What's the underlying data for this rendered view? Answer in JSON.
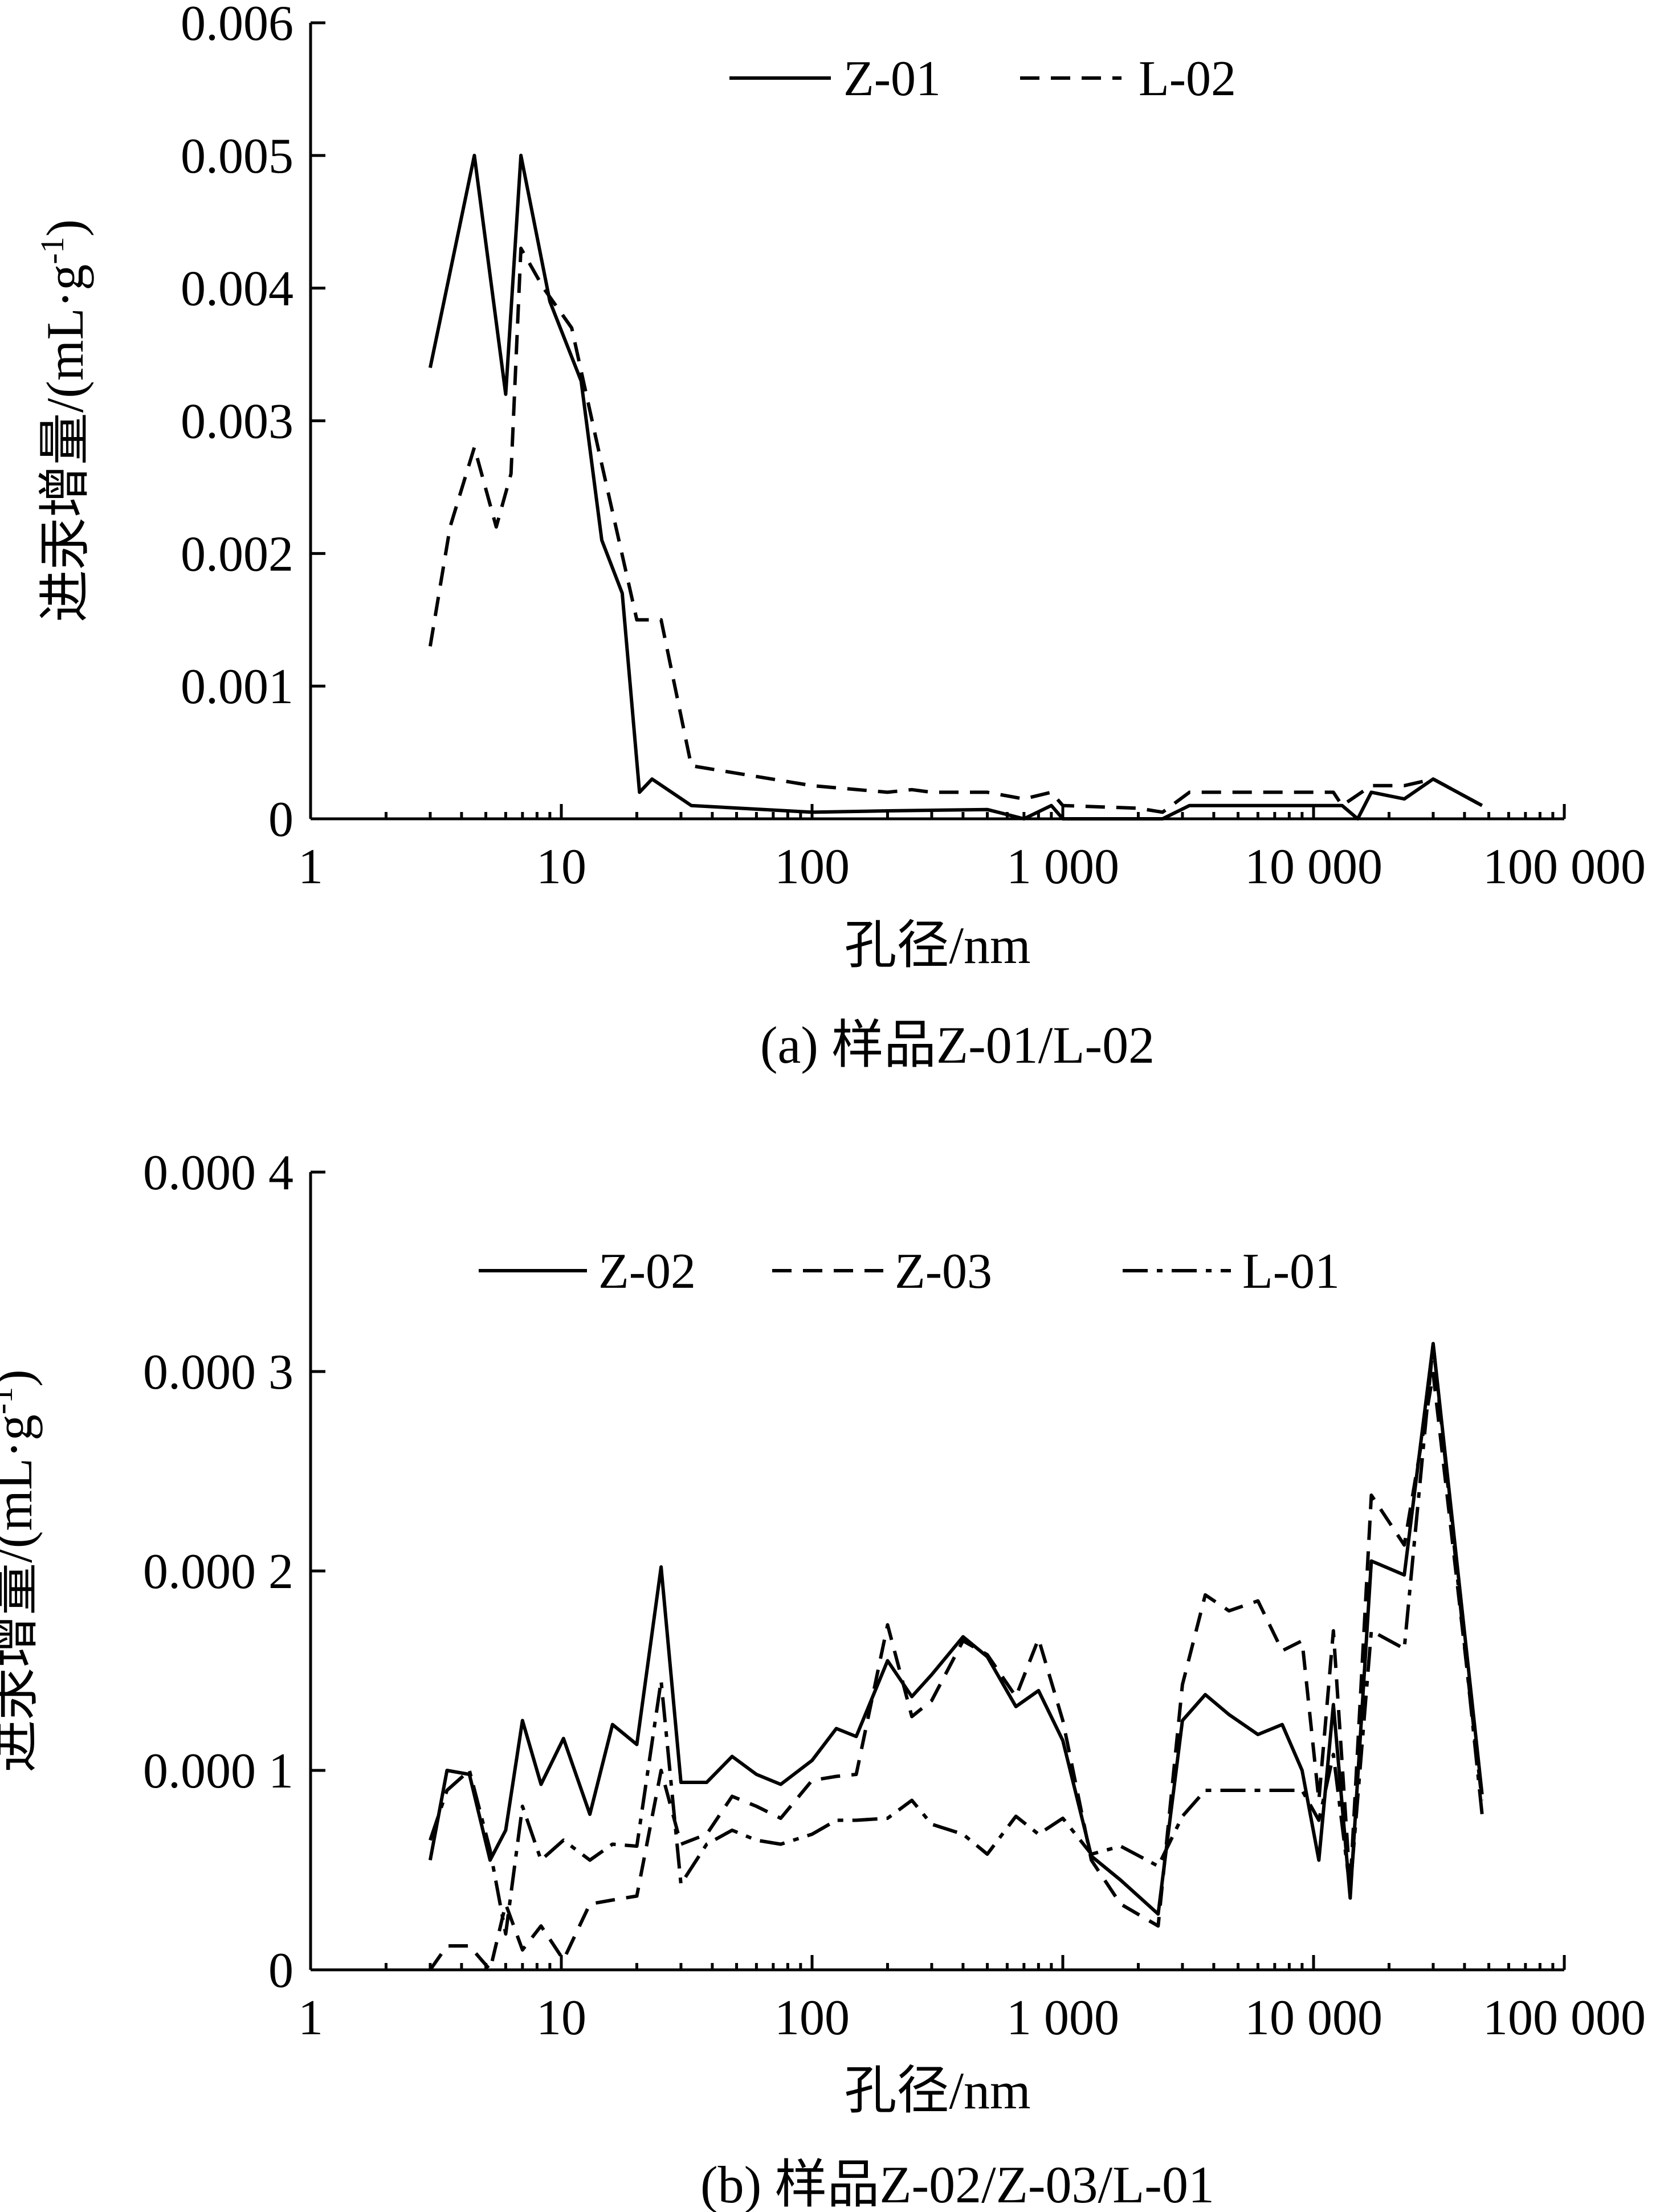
{
  "chart_data": [
    {
      "type": "line",
      "x_scale": "log",
      "xlim": [
        1,
        100000
      ],
      "ylim": [
        0,
        0.006
      ],
      "xticks": [
        1,
        10,
        100,
        1000,
        10000,
        100000
      ],
      "xtick_labels": [
        "1",
        "10",
        "100",
        "1 000",
        "10 000",
        "100 000"
      ],
      "yticks": [
        0,
        0.001,
        0.002,
        0.003,
        0.004,
        0.005,
        0.006
      ],
      "ytick_labels": [
        "0",
        "0.001",
        "0.002",
        "0.003",
        "0.004",
        "0.005",
        "0.006"
      ],
      "xlabel": "孔径/nm",
      "ylabel": "进汞增量/(mL·g",
      "ylabel_sup": "-1",
      "ylabel_end": ")",
      "caption": "(a)  样品Z-01/L-02",
      "legend_position": "top-right",
      "series": [
        {
          "name": "Z-01",
          "style": "solid",
          "x": [
            3,
            4.5,
            6,
            6.9,
            9,
            12,
            14.5,
            17.5,
            20.5,
            23,
            33,
            100,
            200,
            500,
            700,
            900,
            1000,
            2500,
            3200,
            10000,
            13000,
            15000,
            17000,
            23000,
            30000,
            47000
          ],
          "y": [
            0.0034,
            0.005,
            0.0032,
            0.005,
            0.0039,
            0.0033,
            0.0021,
            0.0017,
            0.0002,
            0.0003,
            0.0001,
            5e-05,
            6e-05,
            7e-05,
            0.0,
            0.0001,
            0.0,
            0.0,
            0.0001,
            0.0001,
            0.0001,
            0.0,
            0.0002,
            0.00015,
            0.0003,
            0.0001
          ]
        },
        {
          "name": "L-02",
          "style": "dashed",
          "x": [
            3,
            3.6,
            4.5,
            5.5,
            6.3,
            6.9,
            8.5,
            11,
            14,
            20,
            25,
            33,
            100,
            200,
            250,
            300,
            500,
            700,
            900,
            1000,
            2000,
            2500,
            3200,
            10000,
            12000,
            13000,
            17000,
            23000,
            30000,
            47000
          ],
          "y": [
            0.0013,
            0.0022,
            0.0028,
            0.0022,
            0.0026,
            0.0043,
            0.004,
            0.0037,
            0.0028,
            0.0015,
            0.0015,
            0.0004,
            0.00025,
            0.0002,
            0.00022,
            0.0002,
            0.0002,
            0.00015,
            0.0002,
            0.0001,
            8e-05,
            5e-05,
            0.0002,
            0.0002,
            0.0002,
            0.0001,
            0.00025,
            0.00025,
            0.0003,
            0.0001
          ]
        }
      ]
    },
    {
      "type": "line",
      "x_scale": "log",
      "xlim": [
        1,
        100000
      ],
      "ylim": [
        0,
        0.0004
      ],
      "xticks": [
        1,
        10,
        100,
        1000,
        10000,
        100000
      ],
      "xtick_labels": [
        "1",
        "10",
        "100",
        "1 000",
        "10 000",
        "100 000"
      ],
      "yticks": [
        0,
        0.0001,
        0.0002,
        0.0003,
        0.0004
      ],
      "ytick_labels": [
        "0",
        "0.000 1",
        "0.000 2",
        "0.000 3",
        "0.000 4"
      ],
      "xlabel": "孔径/nm",
      "ylabel": "进汞增量/(mL·g",
      "ylabel_sup": "-1",
      "ylabel_end": ")",
      "caption": "(b)  样品Z-02/Z-03/L-01",
      "legend_position": "top",
      "series": [
        {
          "name": "Z-02",
          "style": "solid",
          "x": [
            3,
            3.5,
            4.3,
            5.2,
            6,
            7,
            8.3,
            10.2,
            13,
            16,
            20,
            25,
            30,
            38,
            48,
            60,
            75,
            100,
            125,
            150,
            200,
            250,
            300,
            400,
            500,
            650,
            800,
            1000,
            1300,
            1700,
            2400,
            3000,
            3700,
            4600,
            6000,
            7500,
            9000,
            10500,
            12000,
            14000,
            17000,
            23000,
            30000,
            47000
          ],
          "y": [
            5.5e-05,
            0.0001,
            9.8e-05,
            5.5e-05,
            7e-05,
            0.000125,
            9.3e-05,
            0.000116,
            7.8e-05,
            0.000123,
            0.000113,
            0.000202,
            9.4e-05,
            9.4e-05,
            0.000107,
            9.8e-05,
            9.3e-05,
            0.000105,
            0.000121,
            0.000117,
            0.000155,
            0.000137,
            0.000148,
            0.000167,
            0.000157,
            0.000132,
            0.00014,
            0.000115,
            5.7e-05,
            4.5e-05,
            2.8e-05,
            0.000125,
            0.000138,
            0.000128,
            0.000118,
            0.000123,
            0.0001,
            5.5e-05,
            0.000133,
            3.6e-05,
            0.000205,
            0.000198,
            0.000314,
            8.8e-05
          ]
        },
        {
          "name": "Z-03",
          "style": "dashed",
          "x": [
            3,
            3.5,
            4.3,
            5.2,
            6,
            7,
            8.3,
            10.2,
            13,
            16,
            20,
            25,
            30,
            38,
            48,
            60,
            75,
            100,
            125,
            150,
            200,
            250,
            300,
            400,
            500,
            650,
            800,
            1000,
            1300,
            1700,
            2400,
            3000,
            3700,
            4600,
            6000,
            7500,
            9000,
            10500,
            12000,
            14000,
            17000,
            23000,
            30000,
            47000
          ],
          "y": [
            0.0,
            1.2e-05,
            1.2e-05,
            0.0,
            3.3e-05,
            1e-05,
            2.2e-05,
            5e-06,
            3.3e-05,
            3.5e-05,
            3.7e-05,
            0.0001,
            6.3e-05,
            6.8e-05,
            8.7e-05,
            8.2e-05,
            7.6e-05,
            9.5e-05,
            9.7e-05,
            9.8e-05,
            0.000173,
            0.000127,
            0.000135,
            0.000165,
            0.000158,
            0.000137,
            0.000166,
            0.000125,
            5.5e-05,
            3.3e-05,
            2.2e-05,
            0.000143,
            0.000188,
            0.00018,
            0.000185,
            0.00016,
            0.000165,
            8.5e-05,
            0.00017,
            4.2e-05,
            0.000238,
            0.000213,
            0.000299,
            8.5e-05
          ]
        },
        {
          "name": "L-01",
          "style": "dashdot",
          "x": [
            3,
            3.5,
            4.3,
            5.2,
            6,
            7,
            8.3,
            10.2,
            13,
            16,
            20,
            25,
            30,
            38,
            48,
            60,
            75,
            100,
            125,
            150,
            200,
            250,
            300,
            400,
            500,
            650,
            800,
            1000,
            1300,
            1700,
            2400,
            3000,
            3700,
            4600,
            6000,
            7500,
            9000,
            10500,
            12000,
            14000,
            17000,
            23000,
            30000,
            47000
          ],
          "y": [
            6.5e-05,
            9e-05,
            0.0001,
            6e-05,
            1.8e-05,
            8.2e-05,
            5.5e-05,
            6.5e-05,
            5.5e-05,
            6.3e-05,
            6.2e-05,
            0.000145,
            4.3e-05,
            6.3e-05,
            7e-05,
            6.5e-05,
            6.3e-05,
            6.8e-05,
            7.5e-05,
            7.5e-05,
            7.6e-05,
            8.5e-05,
            7.3e-05,
            6.8e-05,
            5.8e-05,
            7.7e-05,
            6.8e-05,
            7.6e-05,
            5.8e-05,
            6.2e-05,
            5.2e-05,
            7.7e-05,
            9e-05,
            9e-05,
            9e-05,
            9e-05,
            9e-05,
            7.5e-05,
            0.000108,
            4e-05,
            0.00017,
            0.000161,
            0.000314,
            7.8e-05
          ]
        }
      ]
    }
  ]
}
